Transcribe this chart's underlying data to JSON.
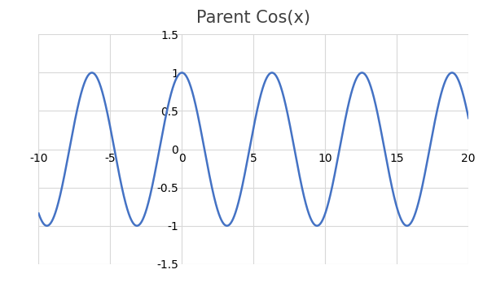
{
  "title": "Parent Cos(x)",
  "title_fontsize": 15,
  "title_color": "#404040",
  "xlim": [
    -10,
    20
  ],
  "ylim": [
    -1.5,
    1.5
  ],
  "xticks": [
    -10,
    -5,
    0,
    5,
    10,
    15,
    20
  ],
  "yticks": [
    -1.5,
    -1,
    -0.5,
    0,
    0.5,
    1,
    1.5
  ],
  "line_color": "#4472C4",
  "line_width": 1.8,
  "x_start": -10,
  "x_end": 20,
  "grid_color": "#D8D8D8",
  "background_color": "#FFFFFF",
  "tick_label_color": "#606060",
  "tick_label_fontsize": 10.5,
  "spine_color": "#C0C0C0"
}
